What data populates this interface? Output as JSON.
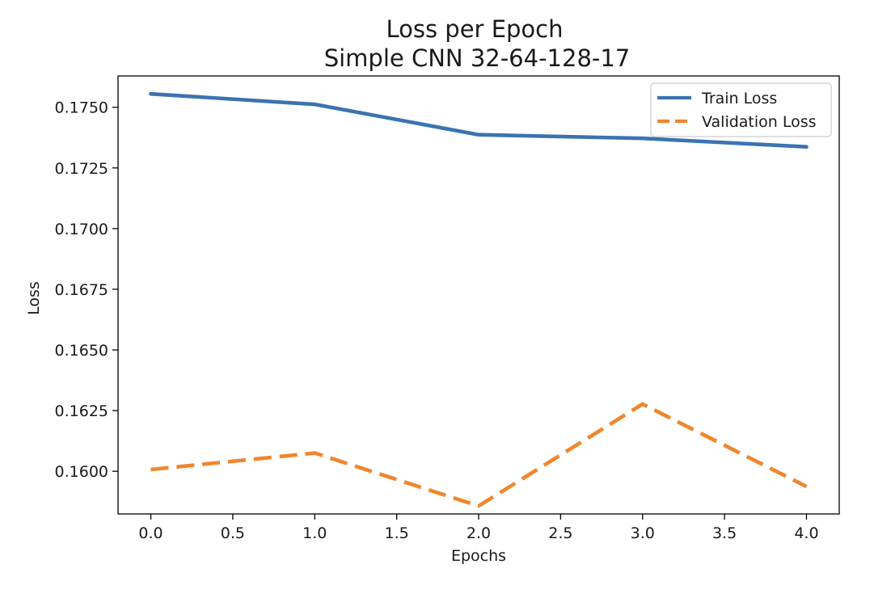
{
  "chart_data": {
    "type": "line",
    "title": "Loss per Epoch",
    "subtitle": "Simple CNN 32-64-128-17",
    "xlabel": "Epochs",
    "ylabel": "Loss",
    "x": [
      0,
      1,
      2,
      3,
      4
    ],
    "xlim": [
      -0.2,
      4.2
    ],
    "ylim": [
      0.15824,
      0.17629
    ],
    "xticks": [
      "0.0",
      "0.5",
      "1.0",
      "1.5",
      "2.0",
      "2.5",
      "3.0",
      "3.5",
      "4.0"
    ],
    "yticks": [
      "0.1600",
      "0.1625",
      "0.1650",
      "0.1675",
      "0.1700",
      "0.1725",
      "0.1750"
    ],
    "grid": false,
    "legend_position": "top-right",
    "series": [
      {
        "name": "Train Loss",
        "values": [
          0.17555,
          0.17512,
          0.17387,
          0.17372,
          0.17337
        ],
        "color": "#3b73b1",
        "style": "solid"
      },
      {
        "name": "Validation Loss",
        "values": [
          0.16007,
          0.16075,
          0.15857,
          0.16277,
          0.15937
        ],
        "color": "#f0862d",
        "style": "dashed"
      }
    ]
  }
}
